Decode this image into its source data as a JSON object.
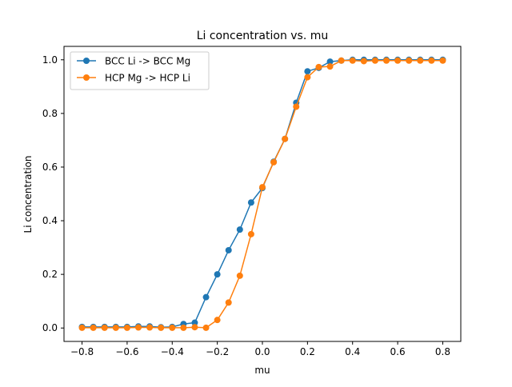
{
  "chart_data": {
    "type": "line",
    "title": "Li concentration vs. mu",
    "xlabel": "mu",
    "ylabel": "Li concentration",
    "xlim": [
      -0.88,
      0.88
    ],
    "ylim": [
      -0.05,
      1.05
    ],
    "x_ticks": [
      -0.8,
      -0.6,
      -0.4,
      -0.2,
      0.0,
      0.2,
      0.4,
      0.6,
      0.8
    ],
    "x_tick_labels": [
      "−0.8",
      "−0.6",
      "−0.4",
      "−0.2",
      "0.0",
      "0.2",
      "0.4",
      "0.6",
      "0.8"
    ],
    "y_ticks": [
      0.0,
      0.2,
      0.4,
      0.6,
      0.8,
      1.0
    ],
    "y_tick_labels": [
      "0.0",
      "0.2",
      "0.4",
      "0.6",
      "0.8",
      "1.0"
    ],
    "grid": false,
    "legend_position": "upper-left",
    "x": [
      -0.8,
      -0.75,
      -0.7,
      -0.65,
      -0.6,
      -0.55,
      -0.5,
      -0.45,
      -0.4,
      -0.35,
      -0.3,
      -0.25,
      -0.2,
      -0.15,
      -0.1,
      -0.05,
      0.0,
      0.05,
      0.1,
      0.15,
      0.2,
      0.25,
      0.3,
      0.35,
      0.4,
      0.45,
      0.5,
      0.55,
      0.6,
      0.65,
      0.7,
      0.75,
      0.8
    ],
    "series": [
      {
        "name": "BCC Li -> BCC Mg",
        "color": "#1f77b4",
        "marker": "circle",
        "values": [
          0.004,
          0.004,
          0.004,
          0.004,
          0.004,
          0.006,
          0.006,
          0.003,
          0.004,
          0.015,
          0.02,
          0.115,
          0.2,
          0.29,
          0.367,
          0.468,
          0.522,
          0.62,
          0.705,
          0.84,
          0.957,
          0.97,
          0.993,
          0.997,
          1.0,
          1.0,
          1.0,
          1.0,
          1.0,
          1.0,
          1.0,
          1.0,
          1.0
        ]
      },
      {
        "name": "HCP Mg -> HCP Li",
        "color": "#ff7f0e",
        "marker": "circle",
        "values": [
          0.001,
          0.001,
          0.001,
          0.001,
          0.001,
          0.002,
          0.002,
          0.001,
          0.001,
          0.001,
          0.003,
          0.001,
          0.03,
          0.095,
          0.195,
          0.35,
          0.525,
          0.618,
          0.705,
          0.825,
          0.935,
          0.973,
          0.975,
          0.997,
          0.997,
          0.995,
          0.997,
          0.997,
          0.997,
          0.997,
          0.997,
          0.997,
          0.997
        ]
      }
    ]
  }
}
